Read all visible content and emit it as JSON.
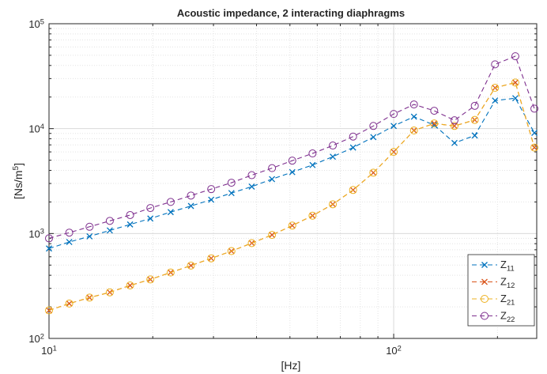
{
  "chart_data": {
    "type": "line",
    "title": "Acoustic impedance, 2 interacting diaphragms",
    "x_label": "[Hz]",
    "y_label": "[Ns/m^5]",
    "x_scale": "log",
    "y_scale": "log",
    "grid": true,
    "minor_grid": true,
    "legend_position": "lower right",
    "xlim": [
      10,
      260
    ],
    "ylim": [
      100,
      100000
    ],
    "xticks": [
      {
        "value": 10,
        "label": "10^1"
      },
      {
        "value": 100,
        "label": "10^2"
      }
    ],
    "yticks": [
      {
        "value": 100,
        "label": "10^2"
      },
      {
        "value": 1000,
        "label": "10^3"
      },
      {
        "value": 10000,
        "label": "10^4"
      },
      {
        "value": 100000,
        "label": "10^5"
      }
    ],
    "x": [
      10,
      11.45,
      13.11,
      15.01,
      17.19,
      19.68,
      22.54,
      25.81,
      29.55,
      33.83,
      38.74,
      44.36,
      50.79,
      58.15,
      66.59,
      76.24,
      87.3,
      100,
      114.5,
      131.1,
      150.1,
      171.9,
      196.8,
      225.4,
      256
    ],
    "series": [
      {
        "name": "Z_11",
        "color": "#0072BD",
        "marker": "x",
        "values": [
          720,
          830,
          940,
          1070,
          1220,
          1390,
          1600,
          1830,
          2100,
          2430,
          2800,
          3300,
          3850,
          4500,
          5400,
          6600,
          8300,
          10600,
          13000,
          10800,
          7300,
          8600,
          18500,
          19500,
          9100
        ]
      },
      {
        "name": "Z_12",
        "color": "#D95319",
        "marker": "x",
        "values": [
          185,
          215,
          245,
          275,
          320,
          365,
          425,
          495,
          580,
          680,
          810,
          970,
          1190,
          1480,
          1900,
          2600,
          3800,
          6000,
          9600,
          11200,
          10600,
          12100,
          24500,
          27500,
          6600
        ]
      },
      {
        "name": "Z_21",
        "color": "#EDB120",
        "marker": "o",
        "values": [
          185,
          215,
          245,
          275,
          320,
          365,
          425,
          495,
          580,
          680,
          810,
          970,
          1190,
          1480,
          1900,
          2600,
          3800,
          6000,
          9600,
          11200,
          10600,
          12100,
          24500,
          27500,
          6600
        ]
      },
      {
        "name": "Z_22",
        "color": "#7E2F8E",
        "marker": "o",
        "values": [
          900,
          1020,
          1160,
          1320,
          1500,
          1750,
          2000,
          2300,
          2650,
          3050,
          3600,
          4200,
          4950,
          5800,
          6900,
          8400,
          10600,
          13800,
          17000,
          14800,
          12000,
          16500,
          41000,
          49000,
          15500
        ]
      }
    ]
  }
}
